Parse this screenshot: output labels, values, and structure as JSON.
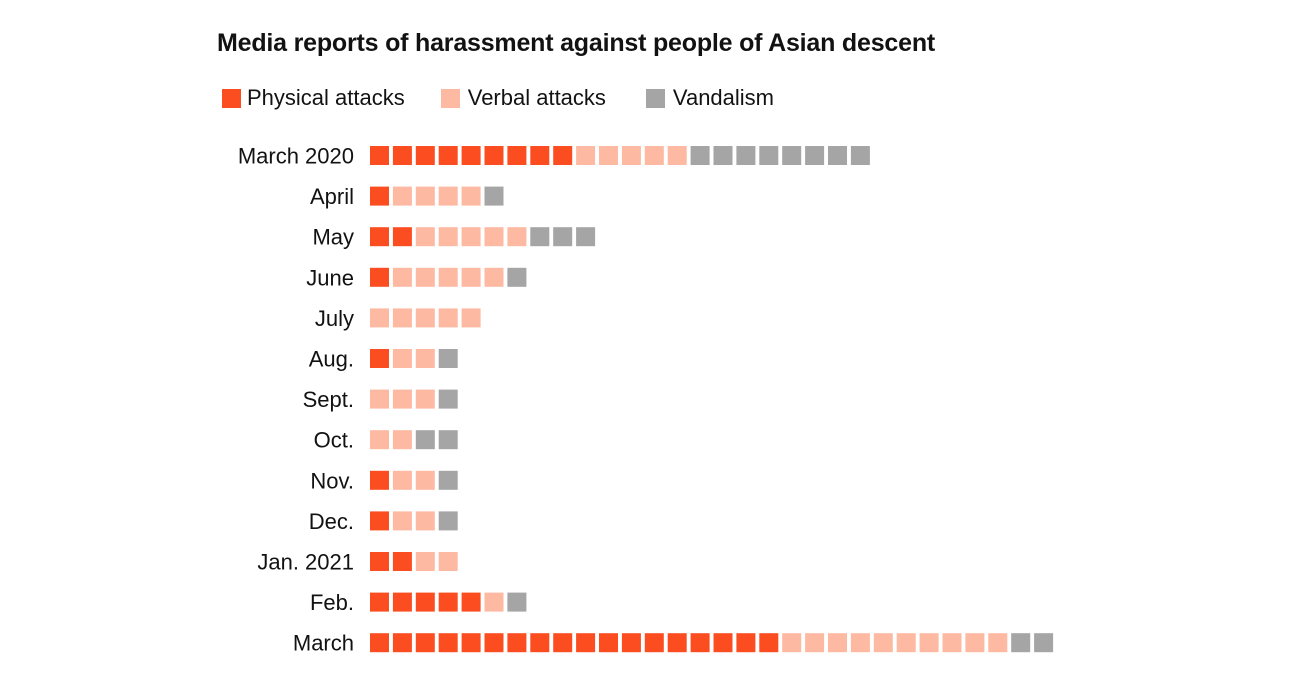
{
  "chart_data": {
    "type": "bar",
    "subtype": "stacked-unit-squares",
    "title": "Media reports of harassment against people of Asian descent",
    "xlabel": "",
    "ylabel": "",
    "legend_position": "top-left",
    "grid": false,
    "categories": [
      "March 2020",
      "April",
      "May",
      "June",
      "July",
      "Aug.",
      "Sept.",
      "Oct.",
      "Nov.",
      "Dec.",
      "Jan. 2021",
      "Feb.",
      "March"
    ],
    "series": [
      {
        "name": "Physical attacks",
        "color": "#fb4d20",
        "values": [
          9,
          1,
          2,
          1,
          0,
          1,
          0,
          0,
          1,
          1,
          2,
          5,
          18
        ]
      },
      {
        "name": "Verbal attacks",
        "color": "#fdb9a1",
        "values": [
          5,
          4,
          5,
          5,
          5,
          2,
          3,
          2,
          2,
          2,
          2,
          1,
          10
        ]
      },
      {
        "name": "Vandalism",
        "color": "#a5a5a5",
        "values": [
          8,
          1,
          3,
          1,
          0,
          1,
          1,
          2,
          1,
          1,
          0,
          1,
          2
        ]
      }
    ]
  }
}
